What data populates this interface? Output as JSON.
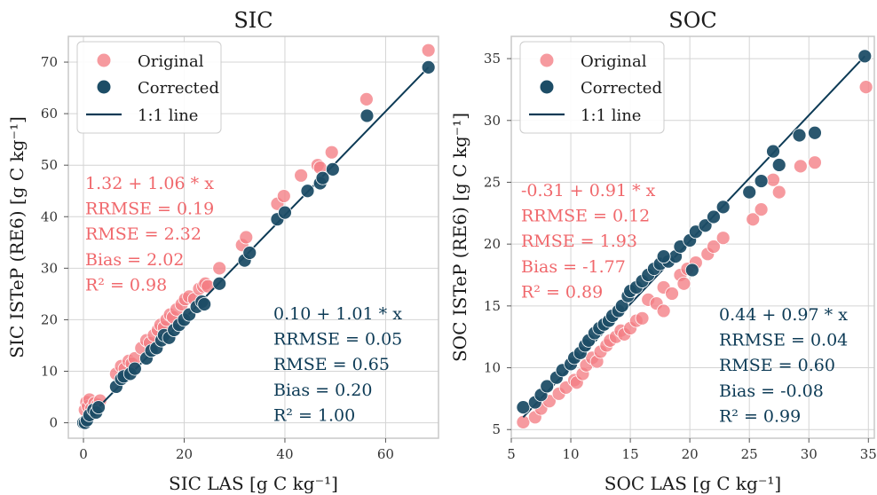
{
  "colors": {
    "original": "#f47e84",
    "corrected": "#1d4d66",
    "line": "#0c3a55",
    "grid": "#d4d4d4",
    "frame": "#c8c8c8",
    "original_text": "#f0686c",
    "corrected_text": "#0c3a55"
  },
  "chart_data": [
    {
      "type": "scatter",
      "title": "SIC",
      "xlabel": "SIC LAS [g C kg⁻¹]",
      "ylabel": "SIC ISTeP (RE6) [g C kg⁻¹]",
      "xlim": [
        -3,
        70.5
      ],
      "ylim": [
        -3,
        75
      ],
      "xticks": [
        "0",
        "20",
        "40",
        "60"
      ],
      "xtick_values": [
        0,
        20,
        40,
        60
      ],
      "yticks": [
        "0",
        "10",
        "20",
        "30",
        "40",
        "50",
        "60",
        "70"
      ],
      "ytick_values": [
        0,
        10,
        20,
        30,
        40,
        50,
        60,
        70
      ],
      "legend": {
        "position": "top-left",
        "entries": [
          "Original",
          "Corrected",
          "1:1 line"
        ]
      },
      "grid": true,
      "line": {
        "name": "1:1 line",
        "from": [
          0,
          0
        ],
        "to": [
          68.5,
          69
        ]
      },
      "series": [
        {
          "name": "Original",
          "x": [
            0.3,
            0.6,
            0.9,
            1.2,
            1.6,
            2.2,
            2.8,
            3.3,
            6.5,
            7.5,
            8.2,
            9.0,
            9.6,
            10.2,
            11.5,
            12.5,
            13.2,
            14.0,
            14.8,
            15.3,
            16.0,
            16.5,
            17.2,
            17.8,
            18.5,
            19.5,
            20.2,
            21.0,
            22.0,
            23.0,
            23.8,
            24.2,
            24.7,
            27.0,
            31.5,
            32.3,
            38.5,
            39.8,
            43.2,
            46.5,
            47.0,
            49.3,
            56.2,
            68.5
          ],
          "y": [
            2.5,
            4.0,
            3.2,
            4.5,
            2.8,
            3.8,
            3.5,
            4.3,
            9.5,
            11.0,
            10.5,
            12.0,
            11.5,
            12.5,
            14.5,
            16.0,
            15.5,
            17.0,
            18.0,
            19.0,
            18.5,
            20.0,
            21.0,
            20.5,
            22.0,
            23.0,
            24.0,
            24.5,
            24.0,
            26.0,
            26.5,
            27.0,
            26.5,
            30.0,
            34.5,
            36.0,
            42.5,
            44.0,
            48.0,
            50.0,
            49.5,
            52.5,
            62.8,
            72.3
          ]
        },
        {
          "name": "Corrected",
          "x": [
            0.0,
            0.3,
            0.7,
            1.2,
            2.0,
            2.5,
            3.0,
            6.5,
            7.5,
            8.0,
            9.3,
            10.2,
            12.5,
            13.5,
            14.5,
            15.5,
            16.0,
            17.0,
            18.0,
            19.0,
            20.0,
            21.0,
            22.5,
            23.5,
            24.0,
            27.0,
            32.0,
            33.0,
            38.5,
            40.0,
            44.5,
            47.0,
            47.5,
            49.5,
            56.3,
            68.5
          ],
          "y": [
            0.0,
            0.0,
            0.5,
            1.5,
            2.5,
            2.0,
            3.0,
            7.0,
            8.5,
            9.0,
            9.5,
            10.5,
            12.5,
            14.0,
            14.5,
            16.0,
            17.0,
            16.5,
            18.0,
            19.0,
            20.0,
            21.0,
            22.5,
            23.5,
            23.0,
            27.0,
            31.5,
            33.0,
            39.5,
            40.8,
            45.0,
            46.5,
            47.5,
            49.2,
            59.6,
            69.0
          ]
        }
      ],
      "annotations": {
        "original": [
          "1.32 + 1.06 * x",
          "RRMSE = 0.19",
          "RMSE = 2.32",
          "Bias = 2.02",
          "R² = 0.98"
        ],
        "corrected": [
          "0.10 + 1.01 * x",
          "RRMSE = 0.05",
          "RMSE = 0.65",
          "Bias = 0.20",
          "R² = 1.00"
        ]
      }
    },
    {
      "type": "scatter",
      "title": "SOC",
      "xlabel": "SOC LAS [g C kg⁻¹]",
      "ylabel": "SOC ISTeP (RE6) [g C kg⁻¹]",
      "xlim": [
        5,
        35.5
      ],
      "ylim": [
        4.3,
        36.8
      ],
      "xticks": [
        "5",
        "10",
        "15",
        "20",
        "25",
        "30",
        "35"
      ],
      "xtick_values": [
        5,
        10,
        15,
        20,
        25,
        30,
        35
      ],
      "yticks": [
        "5",
        "10",
        "15",
        "20",
        "25",
        "30",
        "35"
      ],
      "ytick_values": [
        5,
        10,
        15,
        20,
        25,
        30,
        35
      ],
      "legend": {
        "position": "top-left",
        "entries": [
          "Original",
          "Corrected",
          "1:1 line"
        ]
      },
      "grid": true,
      "line": {
        "name": "1:1 line",
        "from": [
          6,
          6
        ],
        "to": [
          34.7,
          35.2
        ]
      },
      "series": [
        {
          "name": "Original",
          "x": [
            6.0,
            7.0,
            7.5,
            8.2,
            9.0,
            9.6,
            10.3,
            10.5,
            11.0,
            11.3,
            11.8,
            12.2,
            12.5,
            13.0,
            13.3,
            13.8,
            14.2,
            14.5,
            15.0,
            15.5,
            16.0,
            16.5,
            17.2,
            17.8,
            18.5,
            19.2,
            19.8,
            20.5,
            21.5,
            22.0,
            22.8,
            25.3,
            26.0,
            27.0,
            27.5,
            29.3,
            30.5,
            34.8,
            17.8,
            19.5
          ],
          "y": [
            5.6,
            6.0,
            6.7,
            7.3,
            7.9,
            8.4,
            9.0,
            8.8,
            9.5,
            10.2,
            10.8,
            10.5,
            11.3,
            11.8,
            12.2,
            12.5,
            13.0,
            12.7,
            13.2,
            13.8,
            14.0,
            15.5,
            15.2,
            16.5,
            16.0,
            17.5,
            18.0,
            18.5,
            19.2,
            19.8,
            20.5,
            22.0,
            22.8,
            25.2,
            24.2,
            26.3,
            26.6,
            32.7,
            14.6,
            16.8
          ]
        },
        {
          "name": "Corrected",
          "x": [
            6.0,
            7.0,
            7.5,
            8.0,
            8.8,
            9.3,
            10.0,
            10.3,
            10.8,
            11.2,
            11.5,
            12.0,
            12.4,
            12.8,
            13.2,
            13.5,
            14.0,
            14.3,
            14.8,
            15.0,
            15.5,
            16.0,
            16.5,
            17.0,
            17.5,
            18.2,
            18.8,
            19.2,
            20.0,
            20.5,
            21.3,
            22.0,
            22.8,
            25.0,
            26.0,
            27.0,
            27.5,
            29.2,
            30.5,
            34.7,
            17.8,
            20.2
          ],
          "y": [
            6.8,
            7.2,
            7.8,
            8.5,
            9.2,
            9.8,
            10.3,
            10.8,
            11.2,
            11.8,
            12.2,
            12.8,
            13.2,
            13.5,
            13.8,
            14.2,
            14.6,
            15.0,
            15.8,
            16.2,
            16.5,
            17.0,
            17.5,
            18.0,
            18.4,
            18.6,
            19.0,
            19.8,
            20.3,
            21.0,
            21.5,
            22.2,
            23.0,
            24.2,
            25.1,
            27.5,
            26.4,
            28.8,
            29.0,
            35.2,
            19.0,
            17.9
          ]
        }
      ],
      "annotations": {
        "original": [
          "-0.31 + 0.91 * x",
          "RRMSE = 0.12",
          "RMSE = 1.93",
          "Bias = -1.77",
          "R² = 0.89"
        ],
        "corrected": [
          "0.44 + 0.97 * x",
          "RRMSE = 0.04",
          "RMSE = 0.60",
          "Bias = -0.08",
          "R² = 0.99"
        ]
      }
    }
  ]
}
